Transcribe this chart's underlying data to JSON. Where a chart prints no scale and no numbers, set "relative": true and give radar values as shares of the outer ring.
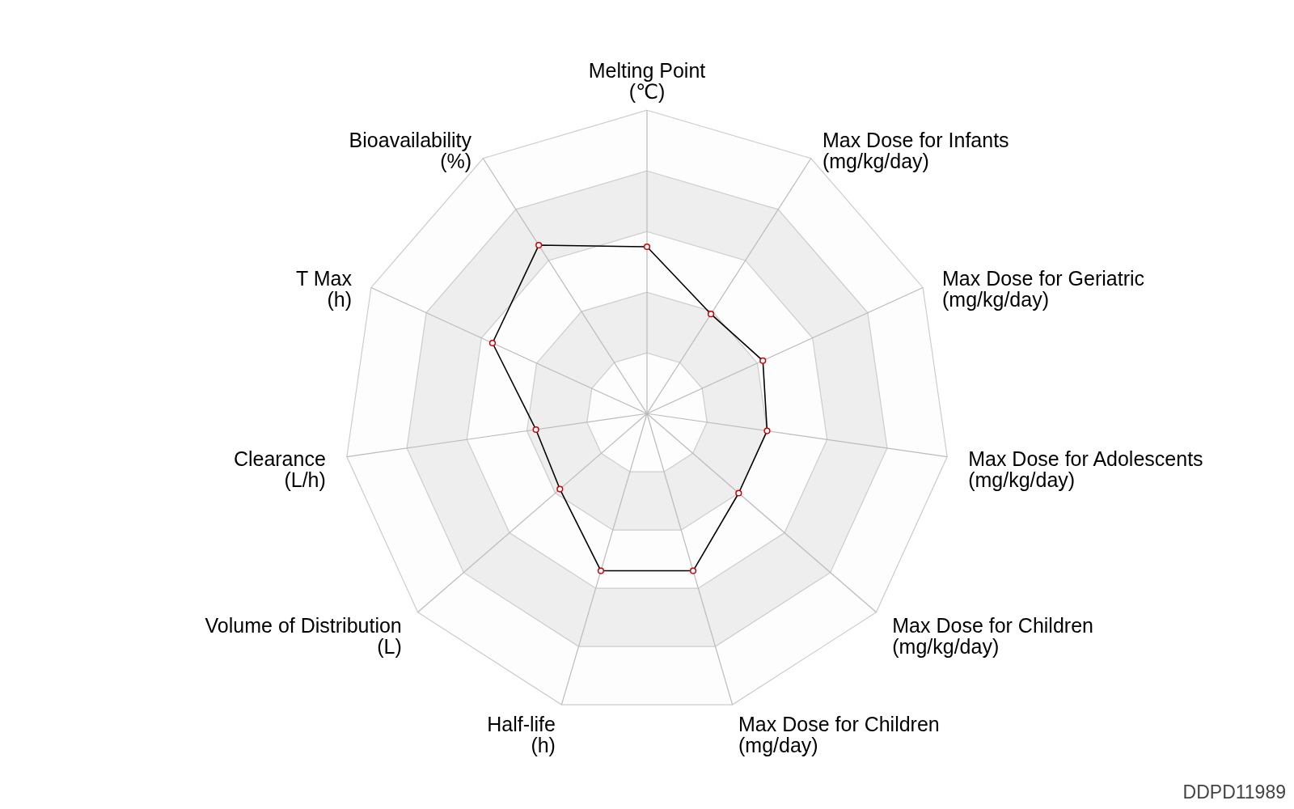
{
  "chart_data": {
    "type": "radar",
    "relative": true,
    "grid": true,
    "marker": "circle",
    "categories": [
      "Melting Point\n(℃)",
      "Max Dose for Infants\n(mg/kg/day)",
      "Max Dose for Geriatric\n(mg/kg/day)",
      "Max Dose for Adolescents\n(mg/kg/day)",
      "Max Dose for Children\n(mg/kg/day)",
      "Max Dose for Children\n(mg/day)",
      "Half-life\n(h)",
      "Volume of Distribution\n(L)",
      "Clearance\n(L/h)",
      "T Max\n(h)",
      "Bioavailability\n(%)"
    ],
    "series": [
      {
        "color": "#000000",
        "values": [
          0.55,
          0.39,
          0.42,
          0.4,
          0.4,
          0.54,
          0.54,
          0.38,
          0.37,
          0.56,
          0.66
        ]
      }
    ],
    "annotations": [
      "DDPD11989"
    ]
  }
}
